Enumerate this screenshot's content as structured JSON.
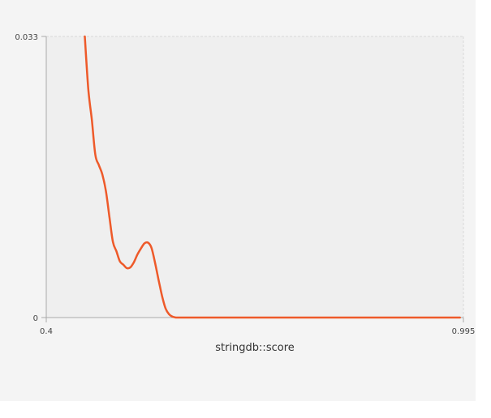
{
  "chart_data": {
    "type": "line",
    "title": "",
    "xlabel": "stringdb::score",
    "ylabel": "",
    "xlim": [
      0.4,
      0.995
    ],
    "ylim": [
      0,
      0.033
    ],
    "x_tick_labels": [
      "0.4",
      "0.995"
    ],
    "y_tick_labels": [
      "0",
      "0.033"
    ],
    "grid": false,
    "legend": "none",
    "colors": {
      "line": "#ee5a2a",
      "plot_background": "#efefef",
      "panel_background": "#f4f4f4",
      "axis": "#aaaaaa",
      "frame": "#d8d8d8"
    },
    "series": [
      {
        "x": [
          0.455,
          0.46,
          0.465,
          0.47,
          0.475,
          0.48,
          0.485,
          0.49,
          0.495,
          0.5,
          0.505,
          0.51,
          0.515,
          0.52,
          0.525,
          0.53,
          0.535,
          0.54,
          0.545,
          0.55,
          0.555,
          0.56,
          0.565,
          0.57,
          0.575,
          0.58,
          0.585,
          0.59,
          0.595,
          0.6,
          0.605,
          0.61,
          0.62,
          0.63,
          0.65,
          0.7,
          0.8,
          0.9,
          0.99
        ],
        "y": [
          0.033,
          0.0268,
          0.0232,
          0.0191,
          0.0179,
          0.0168,
          0.0149,
          0.0119,
          0.0089,
          0.0078,
          0.0066,
          0.0062,
          0.0058,
          0.0059,
          0.0065,
          0.0074,
          0.0081,
          0.0087,
          0.0088,
          0.0082,
          0.0065,
          0.0045,
          0.0026,
          0.0011,
          0.0004,
          0.0001,
          0.0,
          0.0,
          0.0,
          0.0,
          0.0,
          0.0,
          0.0,
          0.0,
          0.0,
          0.0,
          0.0,
          0.0,
          0.0
        ]
      }
    ]
  }
}
